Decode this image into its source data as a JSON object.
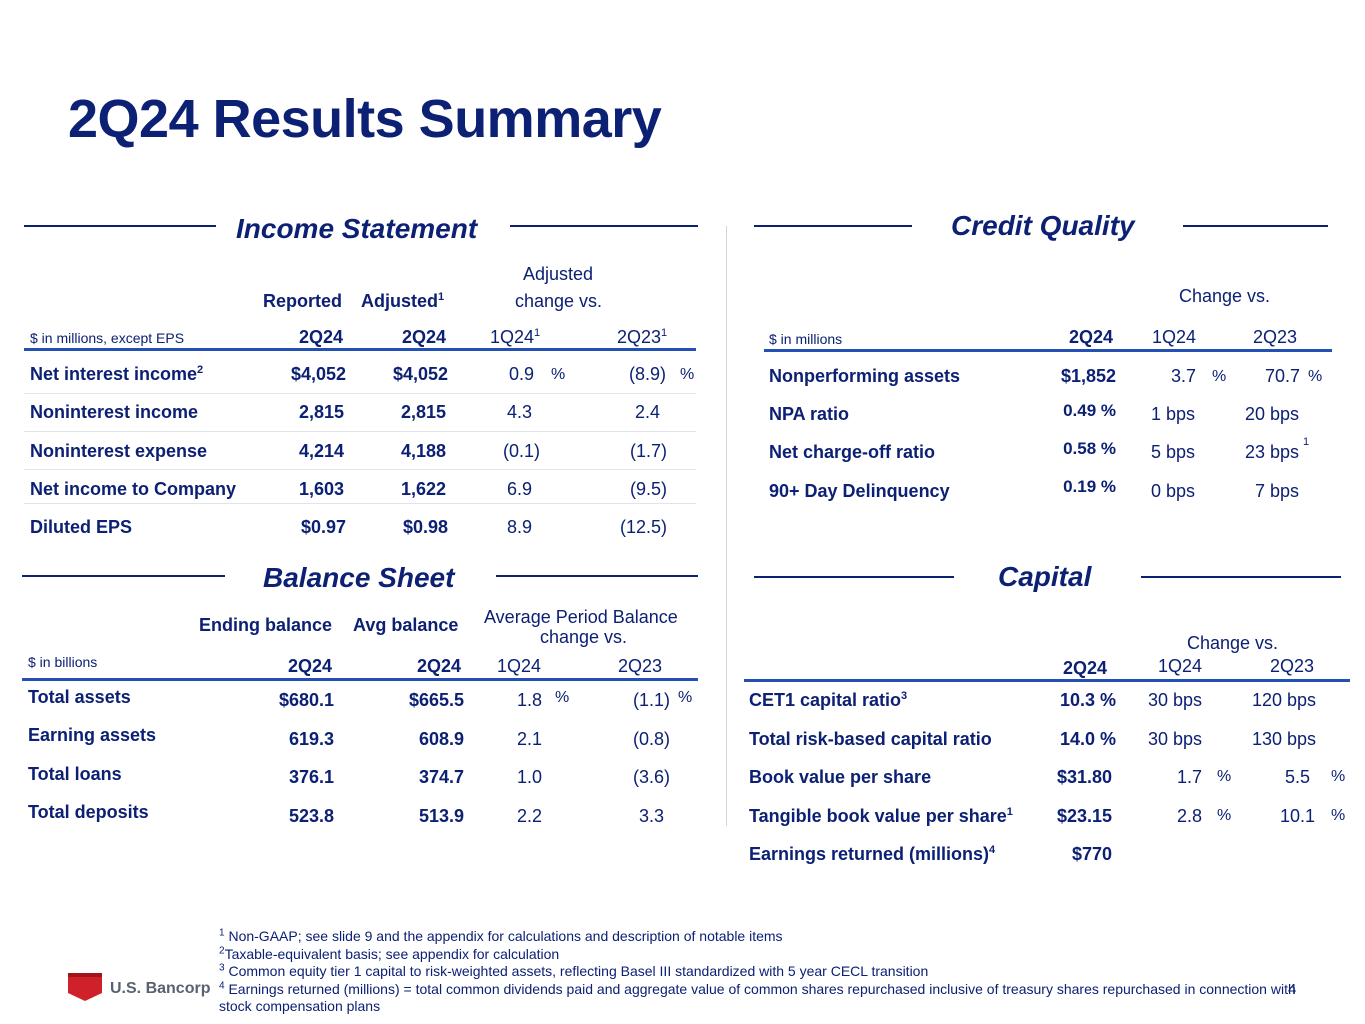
{
  "title": "2Q24 Results Summary",
  "income": {
    "section_title": "Income Statement",
    "col_reported": "Reported",
    "col_adjusted": "Adjusted",
    "col_adjusted_sup": "1",
    "col_adj_change_1": "Adjusted",
    "col_adj_change_2": "change vs.",
    "units": "$ in millions, except EPS",
    "sub_2q24_a": "2Q24",
    "sub_2q24_b": "2Q24",
    "sub_1q24": "1Q24",
    "sub_1q24_sup": "1",
    "sub_2q23": "2Q23",
    "sub_2q23_sup": "1",
    "pct": "%",
    "rows": [
      {
        "label": "Net interest income",
        "sup": "2",
        "reported": "$4,052",
        "adjusted": "$4,052",
        "c1": "0.9",
        "c2": "(8.9)"
      },
      {
        "label": "Noninterest income",
        "sup": "",
        "reported": "2,815",
        "adjusted": "2,815",
        "c1": "4.3",
        "c2": "2.4"
      },
      {
        "label": "Noninterest expense",
        "sup": "",
        "reported": "4,214",
        "adjusted": "4,188",
        "c1": "(0.1)",
        "c2": "(1.7)"
      },
      {
        "label": "Net income to Company",
        "sup": "",
        "reported": "1,603",
        "adjusted": "1,622",
        "c1": "6.9",
        "c2": "(9.5)"
      },
      {
        "label": "Diluted EPS",
        "sup": "",
        "reported": "$0.97",
        "adjusted": "$0.98",
        "c1": "8.9",
        "c2": "(12.5)"
      }
    ]
  },
  "credit": {
    "section_title": "Credit Quality",
    "change_vs": "Change vs.",
    "units": "$ in millions",
    "sub_2q24": "2Q24",
    "sub_1q24": "1Q24",
    "sub_2q23": "2Q23",
    "pct": "%",
    "sup_1": "1",
    "rows": [
      {
        "label": "Nonperforming assets",
        "v": "$1,852",
        "c1": "3.7",
        "c2": "70.7"
      },
      {
        "label": "NPA ratio",
        "v": "0.49 %",
        "c1": "1 bps",
        "c2": "20 bps"
      },
      {
        "label": "Net charge-off ratio",
        "v": "0.58 %",
        "c1": "5 bps",
        "c2": "23 bps"
      },
      {
        "label": "90+ Day Delinquency",
        "v": "0.19 %",
        "c1": "0 bps",
        "c2": "7 bps"
      }
    ]
  },
  "balance": {
    "section_title": "Balance Sheet",
    "col_ending": "Ending balance",
    "col_avg": "Avg balance",
    "col_change_1": "Average Period Balance",
    "col_change_2": "change vs.",
    "units": "$ in billions",
    "sub_2q24_a": "2Q24",
    "sub_2q24_b": "2Q24",
    "sub_1q24": "1Q24",
    "sub_2q23": "2Q23",
    "pct": "%",
    "rows": [
      {
        "label": "Total assets",
        "ending": "$680.1",
        "avg": "$665.5",
        "c1": "1.8",
        "c2": "(1.1)"
      },
      {
        "label": "Earning assets",
        "ending": "619.3",
        "avg": "608.9",
        "c1": "2.1",
        "c2": "(0.8)"
      },
      {
        "label": "Total loans",
        "ending": "376.1",
        "avg": "374.7",
        "c1": "1.0",
        "c2": "(3.6)"
      },
      {
        "label": "Total deposits",
        "ending": "523.8",
        "avg": "513.9",
        "c1": "2.2",
        "c2": "3.3"
      }
    ]
  },
  "capital": {
    "section_title": "Capital",
    "change_vs": "Change vs.",
    "sub_2q24": "2Q24",
    "sub_1q24": "1Q24",
    "sub_2q23": "2Q23",
    "pct": "%",
    "rows": [
      {
        "label": "CET1 capital ratio",
        "sup": "3",
        "v": "10.3 %",
        "c1": "30 bps",
        "c2": "120 bps"
      },
      {
        "label": "Total risk-based capital ratio",
        "sup": "",
        "v": "14.0 %",
        "c1": "30 bps",
        "c2": "130 bps"
      },
      {
        "label": "Book value per share",
        "sup": "",
        "v": "$31.80",
        "c1": "1.7",
        "c2": "5.5"
      },
      {
        "label": "Tangible book value per share",
        "sup": "1",
        "v": "$23.15",
        "c1": "2.8",
        "c2": "10.1"
      },
      {
        "label": "Earnings returned (millions)",
        "sup": "4",
        "v": "$770",
        "c1": "",
        "c2": ""
      }
    ]
  },
  "footnotes": [
    {
      "n": "1",
      "text": "Non-GAAP; see slide 9 and the appendix for calculations and description of notable items"
    },
    {
      "n": "2",
      "text": "Taxable-equivalent basis; see appendix for calculation"
    },
    {
      "n": "3",
      "text": "Common equity tier 1 capital to risk-weighted assets, reflecting Basel III standardized with 5 year CECL transition"
    },
    {
      "n": "4",
      "text": "Earnings returned (millions) = total common dividends paid and aggregate value of common shares repurchased inclusive of treasury shares repurchased in connection with stock compensation plans"
    }
  ],
  "logo_text": "U.S. Bancorp",
  "logo_color": "#d0202a",
  "brand_color": "#0c2074",
  "accent_line_color": "#2450b4",
  "page_number": "4"
}
